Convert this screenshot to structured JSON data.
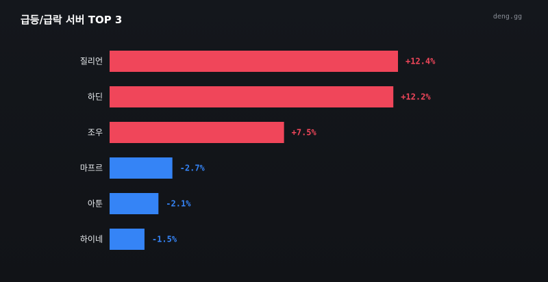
{
  "header": {
    "title": "급등/급락 서버 TOP 3",
    "source": "deng.gg"
  },
  "colors": {
    "positive": "#f0465a",
    "negative": "#3584f6",
    "background": "#13161b"
  },
  "chart_data": {
    "type": "bar",
    "orientation": "horizontal",
    "title": "급등/급락 서버 TOP 3",
    "categories": [
      "질리언",
      "하딘",
      "조우",
      "마프르",
      "아툰",
      "하이네"
    ],
    "values": [
      12.4,
      12.2,
      7.5,
      -2.7,
      -2.1,
      -1.5
    ],
    "value_labels": [
      "+12.4%",
      "+12.2%",
      "+7.5%",
      "-2.7%",
      "-2.1%",
      "-1.5%"
    ],
    "unit": "%",
    "grid": false,
    "legend": "none"
  }
}
